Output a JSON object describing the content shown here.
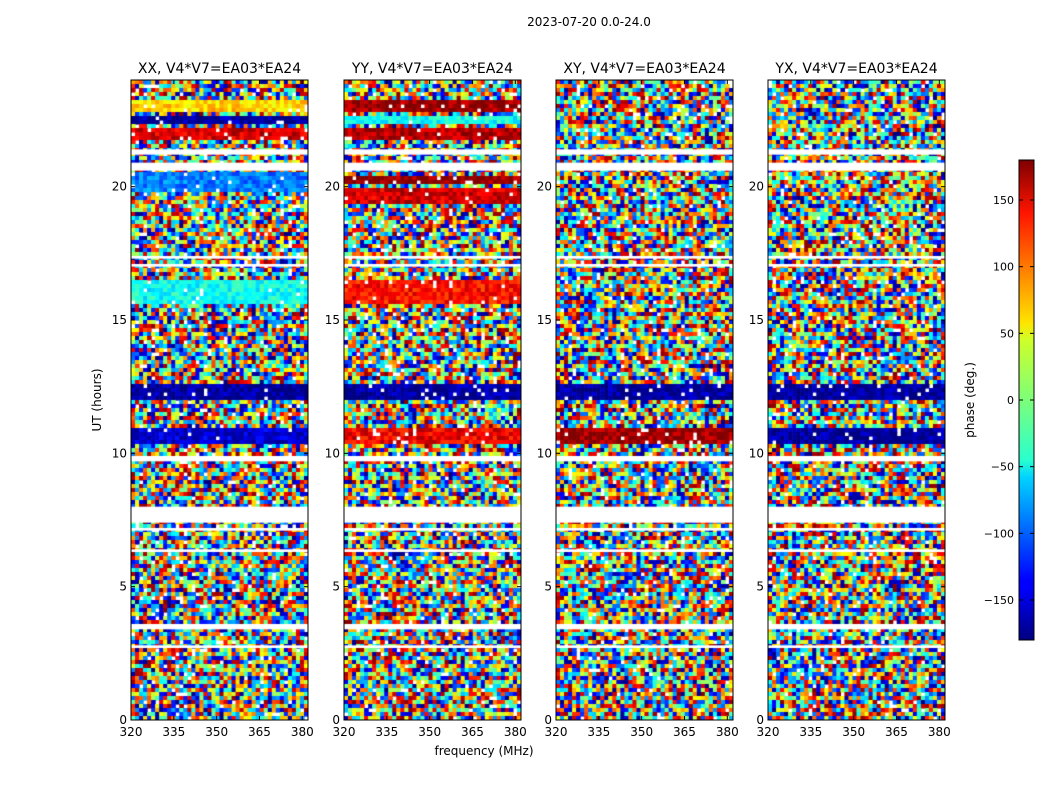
{
  "figure": {
    "suptitle": "2023-07-20 0.0-24.0",
    "ylabel": "UT (hours)",
    "xlabel": "frequency (MHz)"
  },
  "colorbar": {
    "label": "phase (deg.)",
    "vmin": -180,
    "vmax": 180,
    "ticks": [
      150,
      100,
      50,
      0,
      -50,
      -100,
      -150
    ],
    "tick_labels": [
      "150",
      "100",
      "50",
      "0",
      "−50",
      "−100",
      "−150"
    ],
    "colormap": "jet"
  },
  "chart_data": {
    "type": "heatmap",
    "title": "2023-07-20 0.0-24.0",
    "xlabel": "frequency (MHz)",
    "ylabel": "UT (hours)",
    "xlim": [
      320,
      382
    ],
    "ylim": [
      0,
      24
    ],
    "xticks": [
      320,
      335,
      350,
      365,
      380
    ],
    "yticks": [
      0,
      5,
      10,
      15,
      20
    ],
    "flagged_ut_bands": [
      [
        2.7,
        2.8
      ],
      [
        3.4,
        3.6
      ],
      [
        6.3,
        6.4
      ],
      [
        7.1,
        7.2
      ],
      [
        7.4,
        8.0
      ],
      [
        9.7,
        9.9
      ],
      [
        17.0,
        17.1
      ],
      [
        17.3,
        17.4
      ],
      [
        20.6,
        20.9
      ],
      [
        21.2,
        21.4
      ]
    ],
    "panels": [
      {
        "title": "XX, V4*V7=EA03*EA24",
        "smooth_bands": [
          {
            "ut": [
              10.4,
              10.9
            ],
            "phase": -150
          },
          {
            "ut": [
              12.0,
              12.6
            ],
            "phase": -170
          },
          {
            "ut": [
              15.6,
              16.5
            ],
            "phase": -40
          },
          {
            "ut": [
              19.8,
              20.5
            ],
            "phase": -90
          },
          {
            "ut": [
              21.8,
              22.2
            ],
            "phase": 150
          },
          {
            "ut": [
              22.3,
              22.6
            ],
            "phase": -170
          },
          {
            "ut": [
              22.8,
              23.2
            ],
            "phase": 60
          }
        ]
      },
      {
        "title": "YY, V4*V7=EA03*EA24",
        "smooth_bands": [
          {
            "ut": [
              10.4,
              10.9
            ],
            "phase": 140
          },
          {
            "ut": [
              12.0,
              12.6
            ],
            "phase": -170
          },
          {
            "ut": [
              15.6,
              16.5
            ],
            "phase": 130
          },
          {
            "ut": [
              19.3,
              20.0
            ],
            "phase": 150
          },
          {
            "ut": [
              20.1,
              20.4
            ],
            "phase": 175
          },
          {
            "ut": [
              21.8,
              22.2
            ],
            "phase": 160
          },
          {
            "ut": [
              22.3,
              22.6
            ],
            "phase": -40
          },
          {
            "ut": [
              22.8,
              23.2
            ],
            "phase": 170
          }
        ]
      },
      {
        "title": "XY, V4*V7=EA03*EA24",
        "smooth_bands": [
          {
            "ut": [
              10.4,
              10.9
            ],
            "phase": 170
          },
          {
            "ut": [
              12.0,
              12.6
            ],
            "phase": -170
          }
        ]
      },
      {
        "title": "YX, V4*V7=EA03*EA24",
        "smooth_bands": [
          {
            "ut": [
              10.4,
              10.9
            ],
            "phase": -170
          },
          {
            "ut": [
              12.0,
              12.6
            ],
            "phase": -170
          }
        ]
      }
    ]
  }
}
